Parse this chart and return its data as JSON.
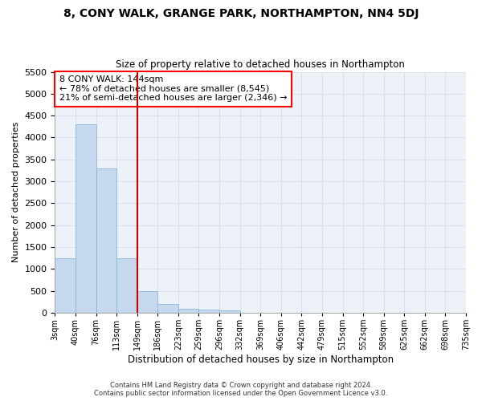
{
  "title": "8, CONY WALK, GRANGE PARK, NORTHAMPTON, NN4 5DJ",
  "subtitle": "Size of property relative to detached houses in Northampton",
  "xlabel": "Distribution of detached houses by size in Northampton",
  "ylabel": "Number of detached properties",
  "footnote1": "Contains HM Land Registry data © Crown copyright and database right 2024.",
  "footnote2": "Contains public sector information licensed under the Open Government Licence v3.0.",
  "annotation_line1": "8 CONY WALK: 144sqm",
  "annotation_line2": "← 78% of detached houses are smaller (8,545)",
  "annotation_line3": "21% of semi-detached houses are larger (2,346) →",
  "bin_labels": [
    "3sqm",
    "40sqm",
    "76sqm",
    "113sqm",
    "149sqm",
    "186sqm",
    "223sqm",
    "259sqm",
    "296sqm",
    "332sqm",
    "369sqm",
    "406sqm",
    "442sqm",
    "479sqm",
    "515sqm",
    "552sqm",
    "589sqm",
    "625sqm",
    "662sqm",
    "698sqm",
    "735sqm"
  ],
  "bar_values": [
    1250,
    4300,
    3300,
    1250,
    500,
    200,
    100,
    70,
    50,
    0,
    0,
    0,
    0,
    0,
    0,
    0,
    0,
    0,
    0,
    0
  ],
  "bar_color": "#c5d8ee",
  "bar_edge_color": "#7bafd4",
  "vline_color": "#cc0000",
  "ylim": [
    0,
    5500
  ],
  "yticks": [
    0,
    500,
    1000,
    1500,
    2000,
    2500,
    3000,
    3500,
    4000,
    4500,
    5000,
    5500
  ],
  "grid_color": "#d0d8e8",
  "background_color": "#ffffff",
  "plot_background": "#edf2f9"
}
